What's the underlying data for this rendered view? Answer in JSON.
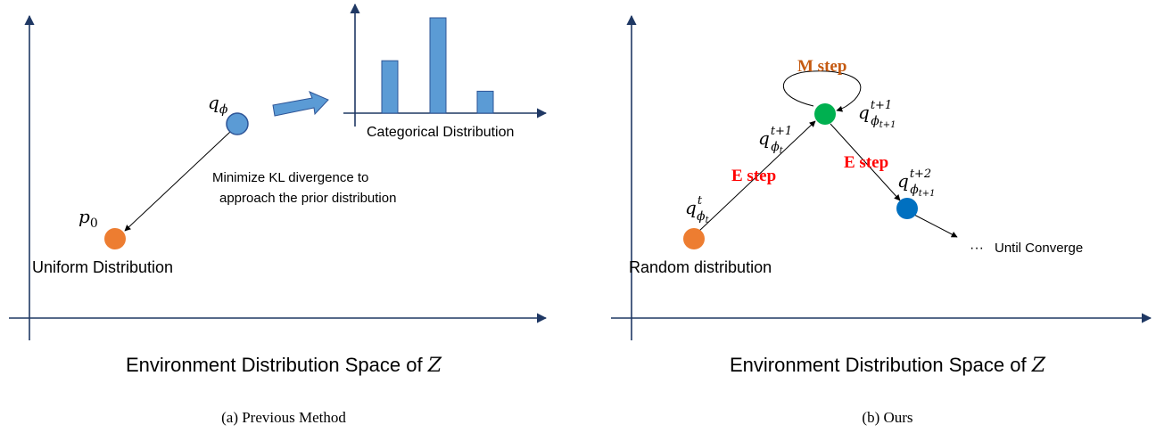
{
  "panel_a": {
    "node_q_label": "q",
    "node_q_sub": "ϕ",
    "node_p_label": "p",
    "node_p_sub": "0",
    "annotation_line1": "Minimize KL divergence to",
    "annotation_line2": "approach the prior distribution",
    "uniform_label": "Uniform Distribution",
    "categorical_label": "Categorical Distribution",
    "categorical_values": [
      0.55,
      1.0,
      0.23
    ],
    "space_title_prefix": "Environment Distribution Space of",
    "space_title_var": "Z",
    "caption": "(a) Previous Method"
  },
  "panel_b": {
    "m_step_label": "M step",
    "e_step_label_1": "E step",
    "e_step_label_2": "E step",
    "q_t_base": "q",
    "q_t_sup": "t",
    "q_t_sub": "ϕ",
    "q_t_subsub": "t",
    "q_t1_base": "q",
    "q_t1_sup": "t+1",
    "q_t1_sub": "ϕ",
    "q_t1_subsub": "t",
    "q_t1b_base": "q",
    "q_t1b_sup": "t+1",
    "q_t1b_sub": "ϕ",
    "q_t1b_subsub": "t+1",
    "q_t2_base": "q",
    "q_t2_sup": "t+2",
    "q_t2_sub": "ϕ",
    "q_t2_subsub": "t+1",
    "random_label": "Random distribution",
    "ellipsis": "···",
    "until_label": "Until Converge",
    "space_title_prefix": "Environment Distribution Space of",
    "space_title_var": "Z",
    "caption": "(b) Ours"
  },
  "colors": {
    "orange": "#ED7D31",
    "blue_light": "#5B9BD5",
    "blue_dark": "#0070C0",
    "green": "#00B050",
    "red": "#FF0000",
    "m_step": "#C55A11",
    "axis": "#1F3864"
  }
}
